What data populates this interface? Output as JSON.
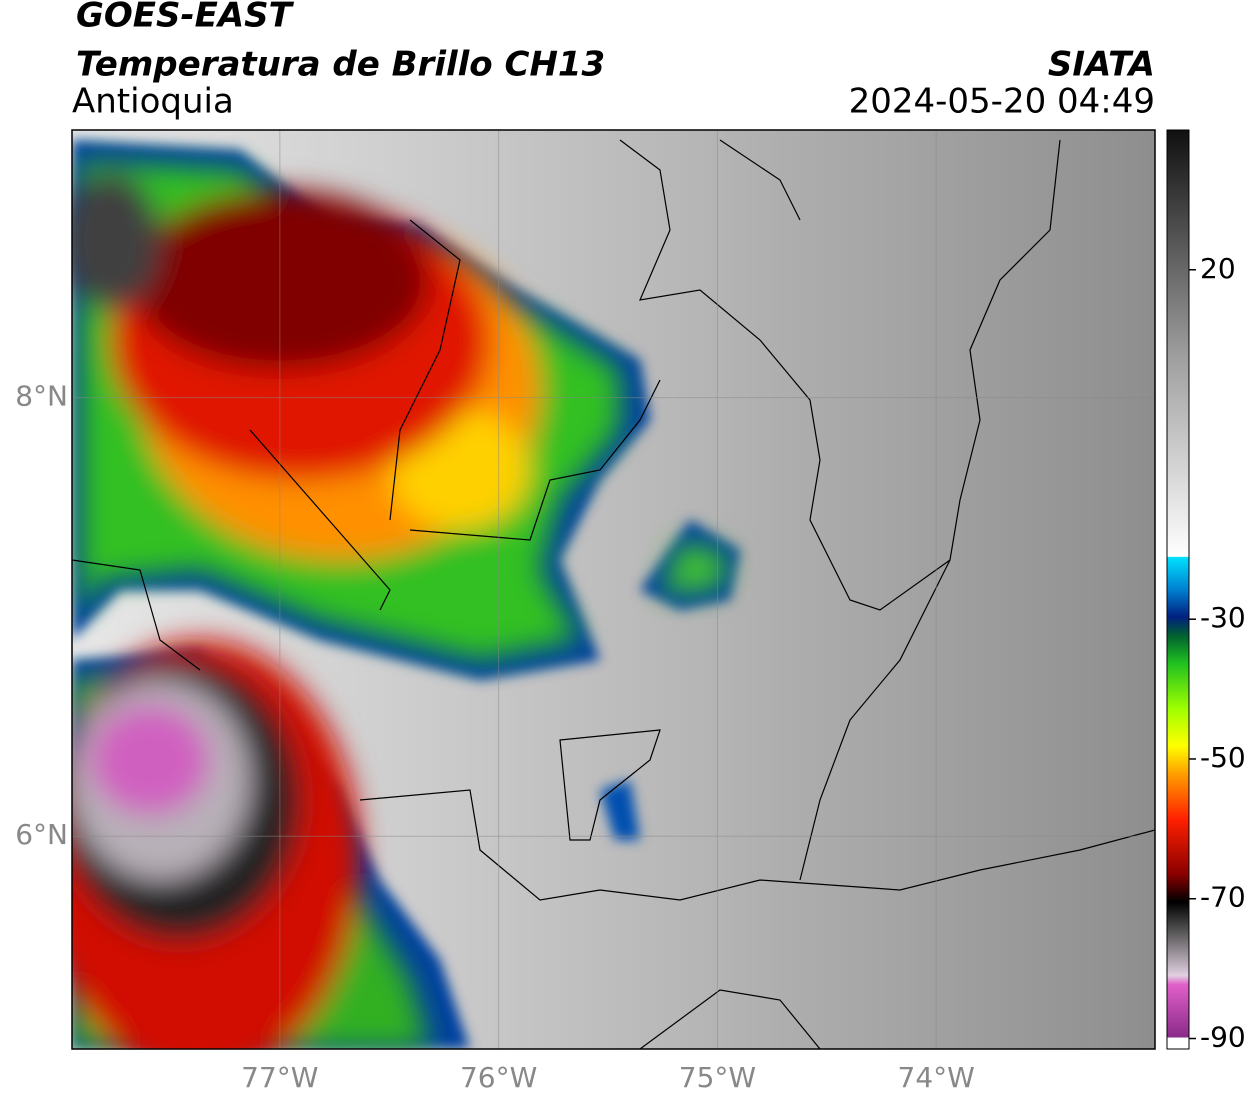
{
  "header": {
    "title": "GOES-EAST",
    "subtitle": "Temperatura de Brillo CH13",
    "region": "Antioquia",
    "source": "SIATA",
    "datetime": "2024-05-20 04:49"
  },
  "map": {
    "lon_range": [
      -77.95,
      -73.0
    ],
    "lat_range": [
      5.03,
      9.22
    ],
    "lon_ticks": [
      {
        "value": -77,
        "label": "77°W"
      },
      {
        "value": -76,
        "label": "76°W"
      },
      {
        "value": -75,
        "label": "75°W"
      },
      {
        "value": -74,
        "label": "74°W"
      }
    ],
    "lat_ticks": [
      {
        "value": 8,
        "label": "8°N"
      },
      {
        "value": 6,
        "label": "6°N"
      }
    ]
  },
  "colorbar": {
    "range": [
      -91.5,
      40
    ],
    "ticks": [
      20,
      -30,
      -50,
      -70,
      -90
    ]
  }
}
